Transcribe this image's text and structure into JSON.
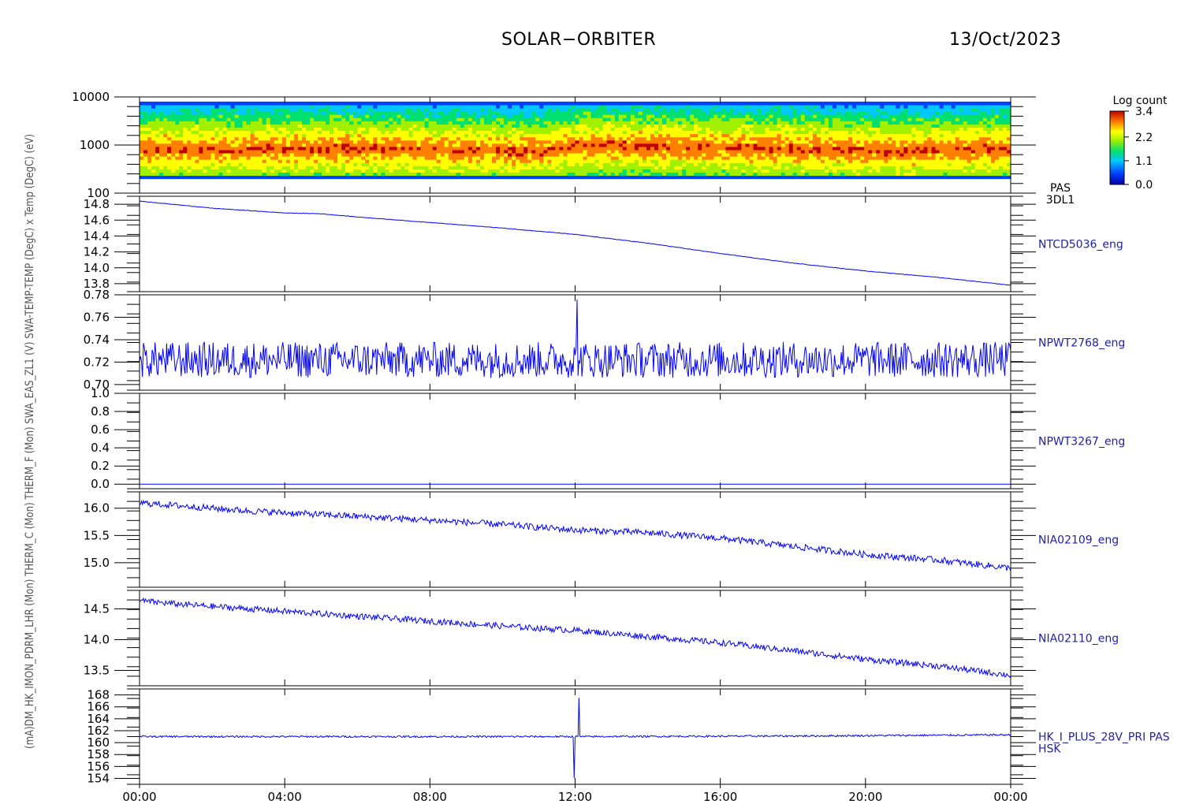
{
  "header": {
    "mission": "SOLAR−ORBITER",
    "date": "13/Oct/2023"
  },
  "colors": {
    "axis": "#000000",
    "trace": "#0000ff",
    "label": "#1f1fa8"
  },
  "x_axis": {
    "ticks": [
      "00:00",
      "04:00",
      "08:00",
      "12:00",
      "16:00",
      "20:00",
      "00:00"
    ],
    "range_hours": [
      0,
      24
    ]
  },
  "colorbar": {
    "title": "Log count",
    "ticks": [
      "3.4",
      "2.2",
      "1.1",
      "0.0"
    ],
    "values": [
      3.4,
      2.2,
      1.1,
      0.0
    ]
  },
  "chart_data": [
    {
      "type": "heatmap",
      "y_scale": "log",
      "ylim": [
        100,
        10000
      ],
      "y_ticks": [
        "10000",
        "1000",
        "100"
      ],
      "y_tick_values": [
        10000,
        1000,
        100
      ],
      "ylabel": "(eV)",
      "right_label": [
        "PAS",
        "3DL1"
      ],
      "peak_energy_ev": [
        {
          "x": 0,
          "y": 800
        },
        {
          "x": 6,
          "y": 850
        },
        {
          "x": 11,
          "y": 750
        },
        {
          "x": 12.1,
          "y": 1000
        },
        {
          "x": 16,
          "y": 900
        },
        {
          "x": 21,
          "y": 750
        },
        {
          "x": 24,
          "y": 850
        }
      ],
      "energy_range_ev": [
        200,
        8000
      ]
    },
    {
      "type": "line",
      "ylim": [
        13.7,
        14.9
      ],
      "y_ticks": [
        "14.8",
        "14.6",
        "14.4",
        "14.2",
        "14.0",
        "13.8"
      ],
      "y_tick_values": [
        14.8,
        14.6,
        14.4,
        14.2,
        14.0,
        13.8
      ],
      "ylabel": "x Temp (DegC)",
      "right_label": "NTCD5036_eng",
      "x": [
        0,
        2,
        4,
        5,
        6,
        8,
        10,
        12,
        14,
        16,
        18,
        20,
        22,
        24
      ],
      "values": [
        14.84,
        14.75,
        14.69,
        14.68,
        14.64,
        14.57,
        14.5,
        14.42,
        14.31,
        14.18,
        14.06,
        13.96,
        13.88,
        13.78
      ],
      "noise": 0.003
    },
    {
      "type": "line",
      "ylim": [
        0.695,
        0.78
      ],
      "y_ticks": [
        "0.78",
        "0.76",
        "0.74",
        "0.72",
        "0.70"
      ],
      "y_tick_values": [
        0.78,
        0.76,
        0.74,
        0.72,
        0.7
      ],
      "ylabel": "SWA-TEMP-TEMP (DegC)",
      "right_label": "NPWT2768_eng",
      "x": [
        0,
        24
      ],
      "values": [
        0.722,
        0.722
      ],
      "noise": 0.016,
      "spikes": [
        {
          "x": 12.05,
          "y": 0.776
        }
      ]
    },
    {
      "type": "line",
      "ylim": [
        -0.05,
        1.0
      ],
      "y_ticks": [
        "1.0",
        "0.8",
        "0.6",
        "0.4",
        "0.2",
        "0.0"
      ],
      "y_tick_values": [
        1.0,
        0.8,
        0.6,
        0.4,
        0.2,
        0.0
      ],
      "ylabel": "SWA-EAS-ZL1 (V)",
      "right_label": "NPWT3267_eng",
      "x": [
        0,
        24
      ],
      "values": [
        0.0,
        0.0
      ],
      "noise": 0
    },
    {
      "type": "line",
      "ylim": [
        14.55,
        16.3
      ],
      "y_ticks": [
        "16.0",
        "15.5",
        "15.0"
      ],
      "y_tick_values": [
        16.0,
        15.5,
        15.0
      ],
      "ylabel": "THERM_C (Mon)",
      "right_label": "NIA02109_eng",
      "x": [
        0,
        1,
        3,
        6,
        8,
        10,
        12,
        14,
        16,
        18,
        20,
        22,
        24
      ],
      "values": [
        16.1,
        16.05,
        15.95,
        15.85,
        15.78,
        15.7,
        15.6,
        15.55,
        15.45,
        15.3,
        15.15,
        15.05,
        14.9
      ],
      "noise": 0.06
    },
    {
      "type": "line",
      "ylim": [
        13.25,
        14.8
      ],
      "y_ticks": [
        "14.5",
        "14.0",
        "13.5"
      ],
      "y_tick_values": [
        14.5,
        14.0,
        13.5
      ],
      "ylabel": "THERM_F (Mon)",
      "right_label": "NIA02110_eng",
      "x": [
        0,
        1,
        3,
        6,
        8,
        10,
        12,
        14,
        16,
        18,
        20,
        22,
        24
      ],
      "values": [
        14.63,
        14.58,
        14.5,
        14.38,
        14.3,
        14.22,
        14.15,
        14.05,
        13.95,
        13.82,
        13.68,
        13.57,
        13.42
      ],
      "noise": 0.05
    },
    {
      "type": "line",
      "ylim": [
        153,
        169
      ],
      "y_ticks": [
        "168",
        "166",
        "164",
        "162",
        "160",
        "158",
        "156",
        "154"
      ],
      "y_tick_values": [
        168,
        166,
        164,
        162,
        160,
        158,
        156,
        154
      ],
      "ylabel": "PDM_HK_IMON (mA)",
      "right_label": [
        "HK_I_PLUS_28V_PRI PAS",
        "HSK"
      ],
      "x": [
        0,
        6,
        12,
        18,
        24
      ],
      "values": [
        161.0,
        161.0,
        161.0,
        161.1,
        161.3
      ],
      "noise": 0.15,
      "spikes": [
        {
          "x": 11.98,
          "y": 154.0
        },
        {
          "x": 12.12,
          "y": 167.5
        }
      ]
    }
  ],
  "left_axis_text": "(mA)DM_HK_IMON_PDRM_LHR (Mon) THERM_C (Mon) THERM_F (Mon) SWA_EAS_ZL1 (V) SWA-TEMP-TEMP (DegC) x Temp (DegC) (eV)"
}
